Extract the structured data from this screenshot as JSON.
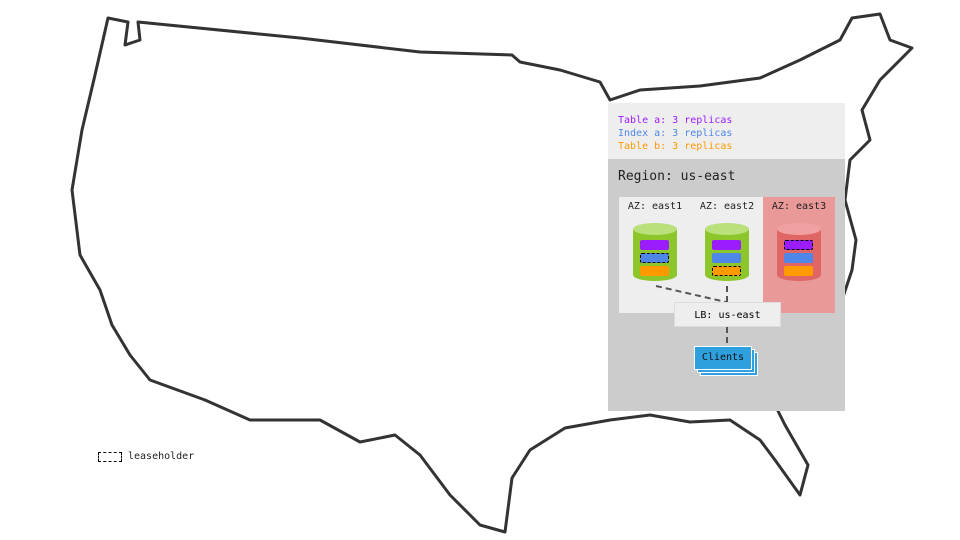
{
  "legend": {
    "items": [
      {
        "text": "Table a: 3 replicas",
        "color": "#9b1dff"
      },
      {
        "text": "Index a: 3 replicas",
        "color": "#4f87e8"
      },
      {
        "text": "Table b: 3 replicas",
        "color": "#ff9a00"
      }
    ]
  },
  "region": {
    "title": "Region: us-east",
    "zones": [
      {
        "label": "AZ: east1",
        "status": "healthy",
        "leaseholder": "Index a"
      },
      {
        "label": "AZ: east2",
        "status": "healthy",
        "leaseholder": "Table b"
      },
      {
        "label": "AZ: east3",
        "status": "failed",
        "leaseholder": "Table a"
      }
    ],
    "load_balancer": "LB: us-east",
    "clients": "Clients"
  },
  "key": {
    "leaseholder": "leaseholder"
  },
  "colors": {
    "healthy": "#8cc62b",
    "failed": "#e06666",
    "clients": "#2fa0de"
  }
}
